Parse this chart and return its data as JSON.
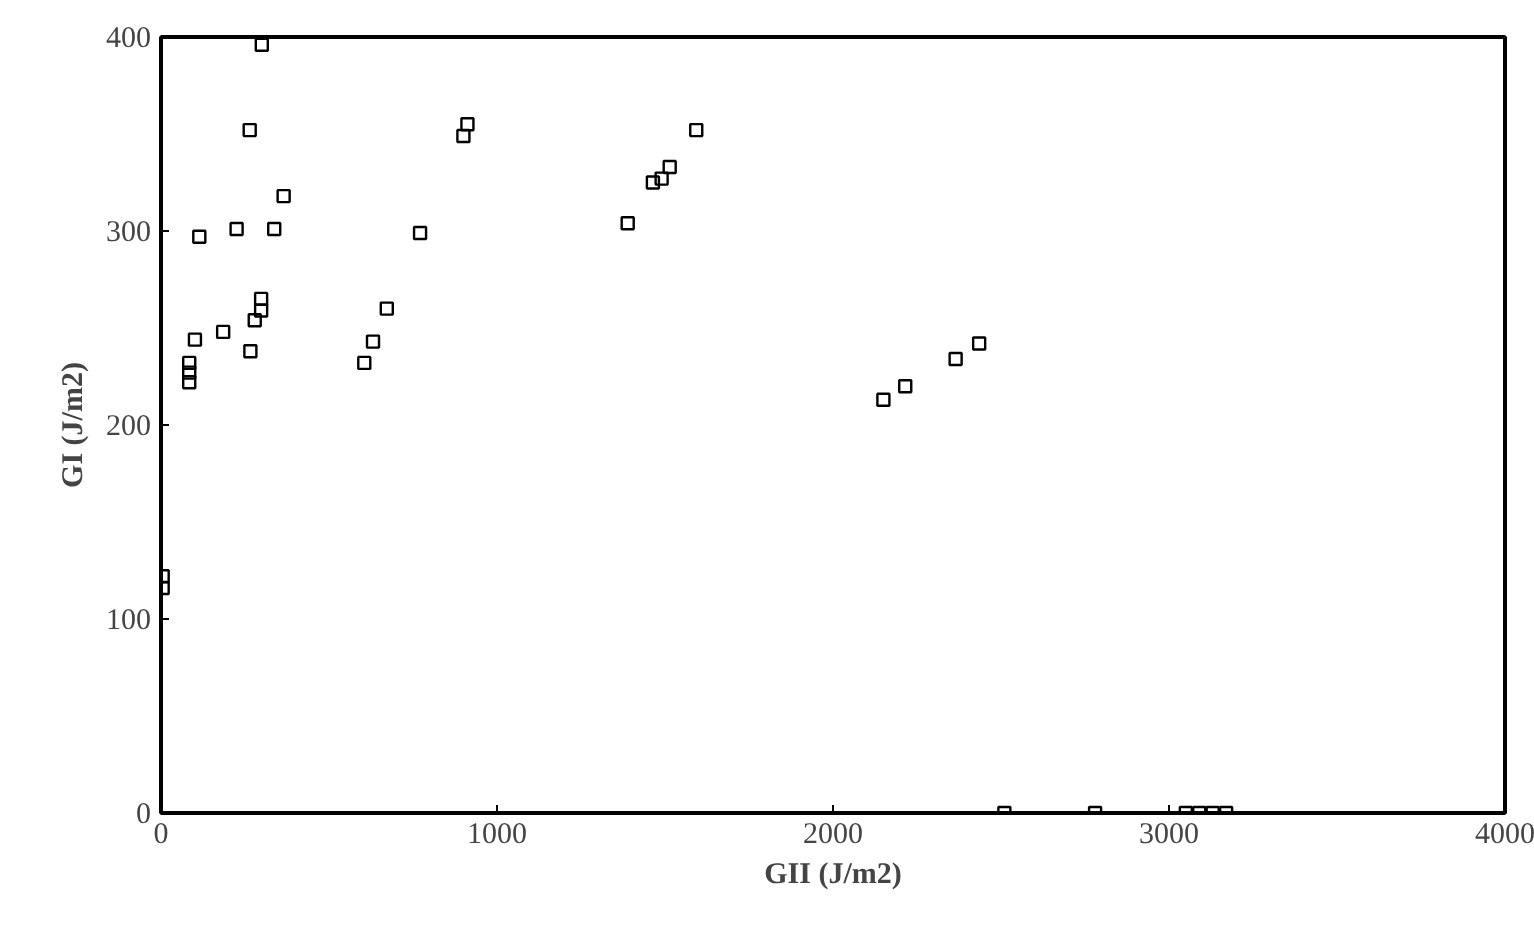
{
  "chart_data": {
    "type": "scatter",
    "xlabel": "GII (J/m2)",
    "ylabel": "GI (J/m2)",
    "x": [
      300,
      264,
      365,
      114,
      225,
      337,
      298,
      298,
      279,
      101,
      185,
      266,
      84,
      84,
      84,
      771,
      672,
      631,
      605,
      900,
      912,
      1389,
      1464,
      1490,
      1514,
      1593,
      5,
      5,
      2150,
      2215,
      2365,
      2435,
      2510,
      2780,
      3050,
      3090,
      3130,
      3170
    ],
    "values": [
      396,
      352,
      318,
      297,
      301,
      301,
      265,
      259,
      254,
      244,
      248,
      238,
      232,
      227,
      222,
      299,
      260,
      243,
      232,
      349,
      355,
      304,
      325,
      327,
      333,
      352,
      122,
      116,
      213,
      220,
      234,
      242,
      0,
      0,
      0,
      0,
      0,
      0
    ],
    "color": "#000000",
    "marker": "square",
    "xlim": [
      0,
      4000
    ],
    "ylim": [
      0,
      400
    ],
    "xticks": [
      0,
      1000,
      2000,
      3000,
      4000
    ],
    "yticks": [
      0,
      100,
      200,
      300,
      400
    ],
    "grid": false
  }
}
